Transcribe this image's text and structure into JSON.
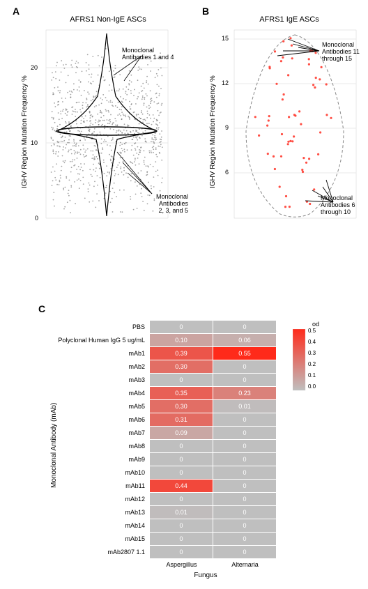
{
  "panelA": {
    "label": "A",
    "title": "AFRS1 Non-IgE ASCs",
    "ylabel": "IGHV Region Mutation Frequency %",
    "ylim": [
      0,
      25
    ],
    "yticks": [
      0,
      10,
      20
    ],
    "annotation_top": "Monoclonal\nAntibodies 1 and 4",
    "annotation_bottom": "Monoclonal\nAntibodies\n2, 3, and 5",
    "point_color": "#555555",
    "violin_stroke": "#000000",
    "background": "#ffffff"
  },
  "panelB": {
    "label": "B",
    "title": "AFRS1 IgE ASCs",
    "ylabel": "IGHV Region Mutation Frequency %",
    "ylim": [
      3,
      15
    ],
    "yticks": [
      6,
      9,
      12,
      15
    ],
    "annotation_top": "Monoclonal\nAntibodies 11\nthrough 15",
    "annotation_bottom": "Monoclonal\nAntibodies 6\nthrough 10",
    "point_color": "#ff3b30",
    "violin_stroke": "#888888",
    "background": "#ffffff"
  },
  "panelC": {
    "label": "C",
    "ylabel": "Monoclonal Antibody (mAb)",
    "xlabel": "Fungus",
    "legend_title": "od",
    "legend_ticks": [
      "0.5",
      "0.4",
      "0.3",
      "0.2",
      "0.1",
      "0.0"
    ],
    "columns": [
      "Aspergillus",
      "Alternaria"
    ],
    "rows": [
      {
        "label": "PBS",
        "values": [
          0,
          0
        ],
        "display": [
          "0",
          "0"
        ]
      },
      {
        "label": "Polyclonal Human IgG 5 ug/mL",
        "values": [
          0.1,
          0.06
        ],
        "display": [
          "0.10",
          "0.06"
        ]
      },
      {
        "label": "mAb1",
        "values": [
          0.39,
          0.55
        ],
        "display": [
          "0.39",
          "0.55"
        ]
      },
      {
        "label": "mAb2",
        "values": [
          0.3,
          0
        ],
        "display": [
          "0.30",
          "0"
        ]
      },
      {
        "label": "mAb3",
        "values": [
          0,
          0
        ],
        "display": [
          "0",
          "0"
        ]
      },
      {
        "label": "mAb4",
        "values": [
          0.35,
          0.23
        ],
        "display": [
          "0.35",
          "0.23"
        ]
      },
      {
        "label": "mAb5",
        "values": [
          0.3,
          0.01
        ],
        "display": [
          "0.30",
          "0.01"
        ]
      },
      {
        "label": "mAb6",
        "values": [
          0.31,
          0
        ],
        "display": [
          "0.31",
          "0"
        ]
      },
      {
        "label": "mAb7",
        "values": [
          0.09,
          0
        ],
        "display": [
          "0.09",
          "0"
        ]
      },
      {
        "label": "mAb8",
        "values": [
          0,
          0
        ],
        "display": [
          "0",
          "0"
        ]
      },
      {
        "label": "mAb9",
        "values": [
          0,
          0
        ],
        "display": [
          "0",
          "0"
        ]
      },
      {
        "label": "mAb10",
        "values": [
          0,
          0
        ],
        "display": [
          "0",
          "0"
        ]
      },
      {
        "label": "mAb11",
        "values": [
          0.44,
          0
        ],
        "display": [
          "0.44",
          "0"
        ]
      },
      {
        "label": "mAb12",
        "values": [
          0,
          0
        ],
        "display": [
          "0",
          "0"
        ]
      },
      {
        "label": "mAb13",
        "values": [
          0.01,
          0
        ],
        "display": [
          "0.01",
          "0"
        ]
      },
      {
        "label": "mAb14",
        "values": [
          0,
          0
        ],
        "display": [
          "0",
          "0"
        ]
      },
      {
        "label": "mAb15",
        "values": [
          0,
          0
        ],
        "display": [
          "0",
          "0"
        ]
      },
      {
        "label": "mAb2807 1.1",
        "values": [
          0,
          0
        ],
        "display": [
          "0",
          "0"
        ]
      }
    ],
    "color_min": "#bfbfbf",
    "color_max": "#ff2a1a",
    "max_od": 0.55,
    "cell_border": "#ffffff"
  }
}
